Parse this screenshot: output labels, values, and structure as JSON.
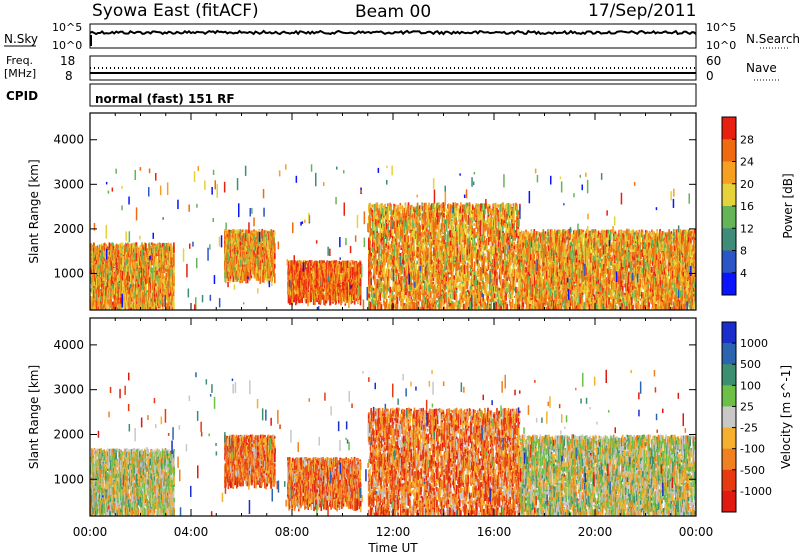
{
  "header": {
    "station": "Syowa East (fitACF)",
    "beam": "Beam 00",
    "date": "17/Sep/2011"
  },
  "noise_panel": {
    "left_label": "N.Sky",
    "right_label": "N.Search",
    "left_ticks": [
      "10^5",
      "10^0"
    ],
    "right_ticks": [
      "10^5",
      "10^0"
    ]
  },
  "freq_panel": {
    "left_label_1": "Freq.",
    "left_label_2": "[MHz]",
    "right_label": "Nave",
    "left_ticks": [
      "18",
      "8"
    ],
    "right_ticks": [
      "60",
      "0"
    ]
  },
  "cpid_panel": {
    "label": "CPID",
    "mode_text": "normal (fast) 151 RF"
  },
  "chart_data": [
    {
      "type": "heatmap",
      "panel": "power",
      "ylabel": "Slant Range [km]",
      "ylim": [
        180,
        4600
      ],
      "yticks": [
        1000,
        2000,
        3000,
        4000
      ],
      "xlim": [
        0,
        24
      ],
      "colorbar": {
        "label": "Power [dB]",
        "ticks": [
          "4",
          "8",
          "12",
          "16",
          "20",
          "24",
          "28"
        ],
        "colors": [
          "#0a14ff",
          "#2c55c8",
          "#3f8c78",
          "#66b458",
          "#e6d23a",
          "#f5a020",
          "#f06a10",
          "#e82010"
        ]
      },
      "echo_regions": [
        {
          "t0": 0.0,
          "t1": 3.3,
          "r0": 300,
          "r1": 1700,
          "level": 5
        },
        {
          "t0": 5.3,
          "t1": 7.3,
          "r0": 1000,
          "r1": 2000,
          "level": 5
        },
        {
          "t0": 7.8,
          "t1": 10.7,
          "r0": 500,
          "r1": 1300,
          "level": 6
        },
        {
          "t0": 11.0,
          "t1": 17.0,
          "r0": 250,
          "r1": 2600,
          "level": 5
        },
        {
          "t0": 17.0,
          "t1": 24.0,
          "r0": 250,
          "r1": 2000,
          "level": 5
        }
      ]
    },
    {
      "type": "heatmap",
      "panel": "velocity",
      "ylabel": "Slant Range [km]",
      "ylim": [
        180,
        4600
      ],
      "yticks": [
        1000,
        2000,
        3000,
        4000
      ],
      "xlim": [
        0,
        24
      ],
      "xticks": [
        "00:00",
        "04:00",
        "08:00",
        "12:00",
        "16:00",
        "20:00",
        "00:00"
      ],
      "xlabel": "Time UT",
      "colorbar": {
        "label": "Velocity [m s^-1]",
        "ticks": [
          "1000",
          "500",
          "100",
          "25",
          "-25",
          "-100",
          "-500",
          "-1000"
        ],
        "colors": [
          "#1a2ecc",
          "#2c64b0",
          "#3a9070",
          "#6cc048",
          "#c8c8c8",
          "#f5b030",
          "#f08020",
          "#e83a10",
          "#e01a10"
        ]
      },
      "echo_regions": [
        {
          "t0": 0.0,
          "t1": 3.3,
          "r0": 300,
          "r1": 1700,
          "level": 4
        },
        {
          "t0": 5.3,
          "t1": 7.3,
          "r0": 1000,
          "r1": 2000,
          "level": 6
        },
        {
          "t0": 7.8,
          "t1": 10.7,
          "r0": 500,
          "r1": 1500,
          "level": 6
        },
        {
          "t0": 11.0,
          "t1": 17.0,
          "r0": 250,
          "r1": 2600,
          "level": 6
        },
        {
          "t0": 17.0,
          "t1": 24.0,
          "r0": 250,
          "r1": 2000,
          "level": 4
        }
      ]
    }
  ]
}
